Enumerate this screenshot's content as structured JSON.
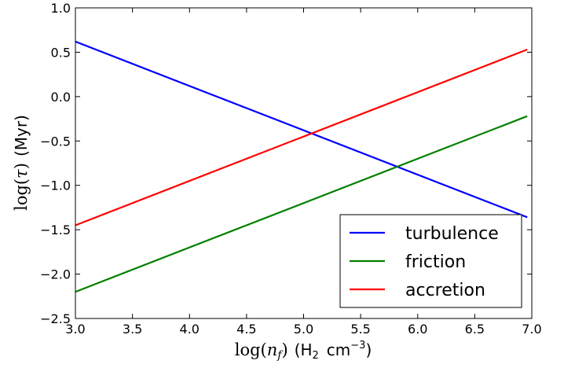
{
  "chart_data": {
    "type": "line",
    "xlabel": "log(n_f) (H₂ cm⁻³)",
    "xlabel_parts": {
      "fn": "log(",
      "var": "n",
      "sub": "f",
      "close": ")",
      "unit_pre": "(H",
      "unit_sub": "2",
      "unit_mid": "cm",
      "unit_sup": "−3",
      "unit_post": ")"
    },
    "ylabel": "log(τ) (Myr)",
    "ylabel_parts": {
      "fn": "log(",
      "var": "τ",
      "close": ")",
      "unit": "(Myr)"
    },
    "xlim": [
      3.0,
      7.0
    ],
    "ylim": [
      -2.5,
      1.0
    ],
    "x_ticks": [
      3.0,
      3.5,
      4.0,
      4.5,
      5.0,
      5.5,
      6.0,
      6.5,
      7.0
    ],
    "x_tick_labels": [
      "3.0",
      "3.5",
      "4.0",
      "4.5",
      "5.0",
      "5.5",
      "6.0",
      "6.5",
      "7.0"
    ],
    "y_ticks": [
      1.0,
      0.5,
      0.0,
      -0.5,
      -1.0,
      -1.5,
      -2.0,
      -2.5
    ],
    "y_tick_labels": [
      "1.0",
      "0.5",
      "0.0",
      "−0.5",
      "−1.0",
      "−1.5",
      "−2.0",
      "−2.5"
    ],
    "grid": false,
    "legend_position": "bottom-right",
    "series": [
      {
        "name": "turbulence",
        "color": "#0000ff",
        "x": [
          3.0,
          6.96
        ],
        "y": [
          0.62,
          -1.36
        ]
      },
      {
        "name": "friction",
        "color": "#008000",
        "x": [
          3.0,
          6.96
        ],
        "y": [
          -2.2,
          -0.22
        ]
      },
      {
        "name": "accretion",
        "color": "#ff0000",
        "x": [
          3.0,
          6.96
        ],
        "y": [
          -1.45,
          0.53
        ]
      }
    ]
  }
}
